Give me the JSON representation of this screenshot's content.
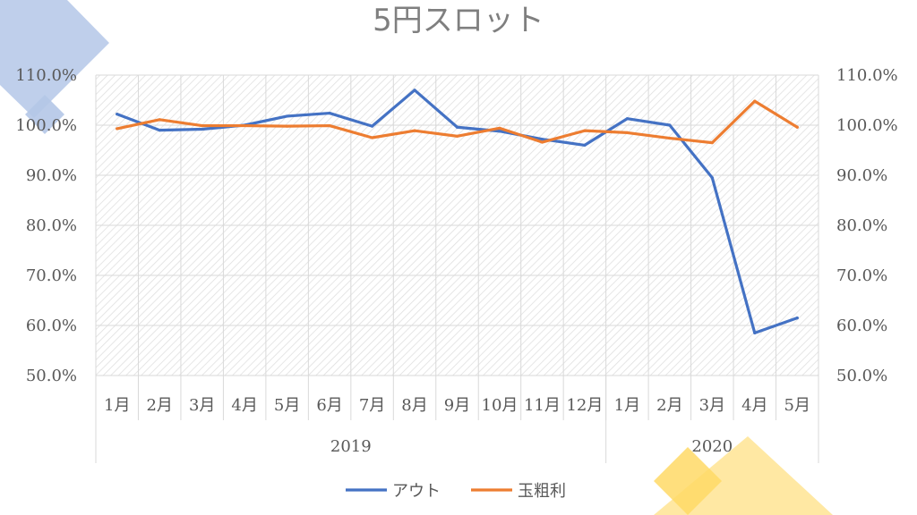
{
  "chart_data": {
    "type": "line",
    "title": "5円スロット",
    "categories": [
      "1月",
      "2月",
      "3月",
      "4月",
      "5月",
      "6月",
      "7月",
      "8月",
      "9月",
      "10月",
      "11月",
      "12月",
      "1月",
      "2月",
      "3月",
      "4月",
      "5月"
    ],
    "year_groups": [
      {
        "label": "2019",
        "count": 12
      },
      {
        "label": "2020",
        "count": 5
      }
    ],
    "series": [
      {
        "name": "アウト",
        "color": "#4472C4",
        "values": [
          102.2,
          99.0,
          99.2,
          100.0,
          101.8,
          102.4,
          99.8,
          107.0,
          99.6,
          98.8,
          97.2,
          96.0,
          101.3,
          100.0,
          89.5,
          58.5,
          61.5
        ]
      },
      {
        "name": "玉粗利",
        "color": "#ED7D31",
        "values": [
          99.3,
          101.1,
          99.9,
          99.9,
          99.8,
          99.9,
          97.5,
          98.9,
          97.8,
          99.4,
          96.6,
          98.9,
          98.5,
          97.4,
          96.5,
          104.8,
          99.6
        ]
      }
    ],
    "y_ticks": [
      "50.0%",
      "60.0%",
      "70.0%",
      "80.0%",
      "90.0%",
      "100.0%",
      "110.0%"
    ],
    "ylim": [
      50,
      110
    ],
    "grid": true,
    "legend": "bottom"
  },
  "decor_colors": {
    "blue": "#B4C7E7",
    "yellow": "#FFD966"
  }
}
